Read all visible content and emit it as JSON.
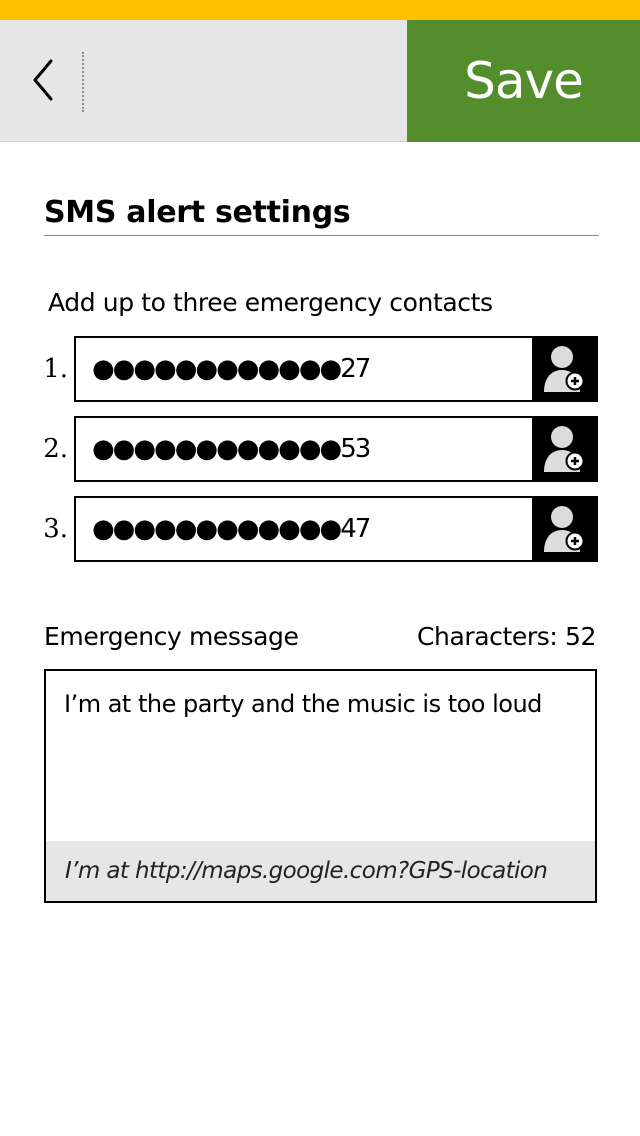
{
  "colors": {
    "status_bar": "#ffc000",
    "header_background": "#e6e6e6",
    "save_background": "#548d2c",
    "save_text": "#ffffff",
    "contact_picker_background": "#000000",
    "message_footer_background": "#e6e6e6"
  },
  "header": {
    "back_icon": "chevron-left-icon",
    "save_label": "Save"
  },
  "settings": {
    "title": "SMS alert settings",
    "contacts_hint": "Add up to three emergency contacts",
    "contacts": [
      {
        "number": "1.",
        "value": "●●●●●●●●●●●●27",
        "picker_icon": "add-contact-icon"
      },
      {
        "number": "2.",
        "value": "●●●●●●●●●●●●53",
        "picker_icon": "add-contact-icon"
      },
      {
        "number": "3.",
        "value": "●●●●●●●●●●●●47",
        "picker_icon": "add-contact-icon"
      }
    ]
  },
  "message": {
    "label": "Emergency message",
    "char_count": "Characters: 52",
    "text": "I’m at the party and the music is too loud",
    "suffix": "I’m at http://maps.google.com?GPS-location"
  }
}
